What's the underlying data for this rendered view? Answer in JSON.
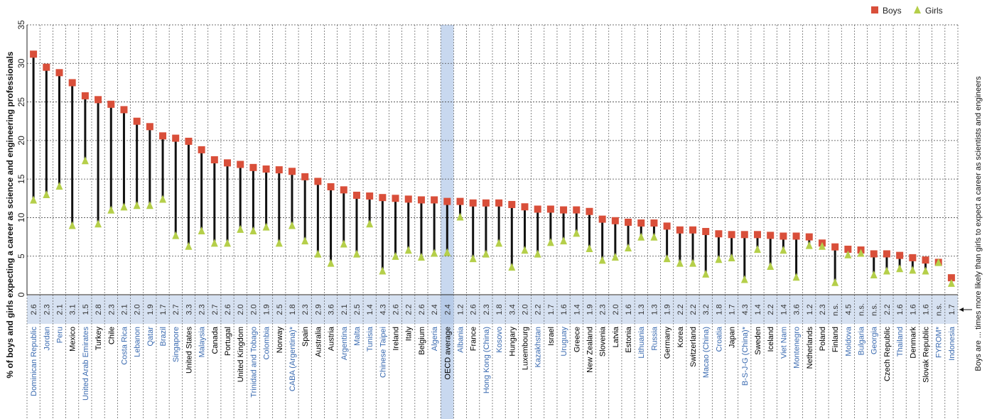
{
  "chart_data": {
    "type": "dot",
    "ylabel": "% of boys and girls expecting a career as science and engineering professionals",
    "ylim": [
      0,
      35
    ],
    "yticks": [
      0,
      5,
      10,
      15,
      20,
      25,
      30,
      35
    ],
    "right_label": "Boys are ... times more likely than girls to expect a career as scientists and engineers",
    "legend": [
      {
        "name": "Boys",
        "color": "#d94f3a",
        "marker": "square"
      },
      {
        "name": "Girls",
        "color": "#b5cf4a",
        "marker": "triangle"
      }
    ],
    "highlight_color": "#c8d8ef",
    "label_colors": {
      "oecd": "#000000",
      "partner": "#3a6ab0"
    },
    "categories": [
      "Dominican Republic",
      "Jordan",
      "Peru",
      "Mexico",
      "United Arab Emirates",
      "Turkey",
      "Chile",
      "Costa Rica",
      "Lebanon",
      "Qatar",
      "Brazil",
      "Singapore",
      "United States",
      "Malaysia",
      "Canada",
      "Portugal",
      "United Kingdom",
      "Trinidad and Tobago",
      "Colombia",
      "Norway",
      "CABA (Argentina)*",
      "Spain",
      "Australia",
      "Austria",
      "Argentina",
      "Malta",
      "Tunisia",
      "Chinese Taipei",
      "Ireland",
      "Italy",
      "Belgium",
      "Algeria",
      "OECD average",
      "Albania",
      "France",
      "Hong Kong (China)",
      "Kosovo",
      "Hungary",
      "Luxembourg",
      "Kazakhstan",
      "Israel",
      "Uruguay",
      "Greece",
      "New Zealand",
      "Slovenia",
      "Latvia",
      "Estonia",
      "Lithuania",
      "Russia",
      "Germany",
      "Korea",
      "Switzerland",
      "Macao (China)",
      "Croatia",
      "Japan",
      "B-S-J-G (China)*",
      "Sweden",
      "Iceland",
      "Viet Nam",
      "Montenegro",
      "Netherlands",
      "Poland",
      "Finland",
      "Moldova",
      "Bulgaria",
      "Georgia",
      "Czech Republic",
      "Thailand",
      "Denmark",
      "Slovak Republic",
      "FYROM*",
      "Indonesia"
    ],
    "group": [
      "p",
      "p",
      "p",
      "o",
      "p",
      "o",
      "o",
      "p",
      "p",
      "p",
      "p",
      "p",
      "o",
      "p",
      "o",
      "o",
      "o",
      "p",
      "p",
      "o",
      "p",
      "o",
      "o",
      "o",
      "p",
      "p",
      "p",
      "p",
      "o",
      "o",
      "o",
      "p",
      "avg",
      "p",
      "o",
      "p",
      "p",
      "o",
      "o",
      "p",
      "o",
      "p",
      "o",
      "o",
      "o",
      "o",
      "o",
      "p",
      "p",
      "o",
      "o",
      "o",
      "p",
      "p",
      "o",
      "p",
      "o",
      "o",
      "p",
      "p",
      "o",
      "o",
      "o",
      "p",
      "p",
      "p",
      "o",
      "p",
      "o",
      "o",
      "p",
      "p"
    ],
    "ratios": [
      "2.6",
      "2.3",
      "2.1",
      "3.1",
      "1.5",
      "2.8",
      "2.3",
      "2.1",
      "2.0",
      "1.9",
      "1.7",
      "2.7",
      "3.3",
      "2.3",
      "2.7",
      "2.6",
      "2.0",
      "2.0",
      "1.9",
      "2.5",
      "1.8",
      "2.3",
      "2.9",
      "3.6",
      "2.1",
      "2.5",
      "1.4",
      "4.3",
      "2.6",
      "2.2",
      "2.6",
      "2.4",
      "2.4",
      "1.2",
      "2.6",
      "2.3",
      "1.8",
      "3.4",
      "2.0",
      "2.2",
      "1.7",
      "1.6",
      "1.4",
      "1.9",
      "2.3",
      "2.0",
      "1.6",
      "1.3",
      "1.3",
      "1.9",
      "2.2",
      "2.2",
      "3.2",
      "1.8",
      "1.7",
      "4.3",
      "1.4",
      "2.2",
      "1.4",
      "3.6",
      "1.2",
      "2.3",
      "n.s.",
      "4.5",
      "n.s.",
      "n.s.",
      "2.2",
      "1.6",
      "1.6",
      "1.6",
      "n.s.",
      "1.7"
    ],
    "series": [
      {
        "name": "Boys",
        "values": [
          31.2,
          29.5,
          28.8,
          27.5,
          25.8,
          25.3,
          24.7,
          24.0,
          22.5,
          21.8,
          20.6,
          20.3,
          19.9,
          18.8,
          17.5,
          17.1,
          16.9,
          16.5,
          16.3,
          16.2,
          16.0,
          15.3,
          14.7,
          14.0,
          13.6,
          12.9,
          12.8,
          12.6,
          12.5,
          12.4,
          12.3,
          12.3,
          12.1,
          12.1,
          11.9,
          11.9,
          11.9,
          11.7,
          11.4,
          11.1,
          11.1,
          11.0,
          11.0,
          10.8,
          9.8,
          9.6,
          9.4,
          9.3,
          9.3,
          8.9,
          8.4,
          8.4,
          8.2,
          7.9,
          7.8,
          7.8,
          7.8,
          7.7,
          7.6,
          7.6,
          7.5,
          6.7,
          6.2,
          5.9,
          5.8,
          5.3,
          5.3,
          5.1,
          4.8,
          4.5,
          4.2,
          2.2
        ]
      },
      {
        "name": "Girls",
        "values": [
          12.1,
          12.8,
          13.9,
          8.8,
          17.2,
          9.0,
          10.8,
          11.2,
          11.4,
          11.4,
          12.2,
          7.5,
          6.1,
          8.1,
          6.5,
          6.5,
          8.3,
          8.1,
          8.6,
          6.5,
          8.8,
          6.8,
          5.1,
          3.9,
          6.4,
          5.1,
          9.0,
          2.9,
          4.8,
          5.6,
          4.7,
          5.2,
          5.3,
          9.9,
          4.5,
          5.1,
          6.5,
          3.4,
          5.6,
          5.1,
          6.6,
          6.8,
          7.8,
          5.8,
          4.3,
          4.7,
          5.9,
          7.3,
          7.3,
          4.5,
          3.9,
          3.9,
          2.5,
          4.4,
          4.6,
          1.8,
          5.7,
          3.5,
          5.6,
          2.1,
          6.2,
          6.1,
          1.4,
          5.0,
          5.2,
          2.4,
          2.9,
          3.2,
          3.0,
          2.9,
          4.0,
          1.3
        ]
      }
    ]
  }
}
